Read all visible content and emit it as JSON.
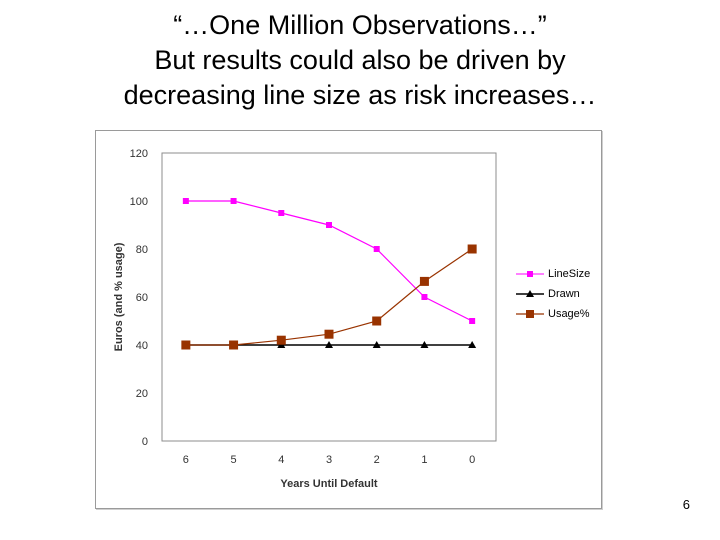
{
  "slide": {
    "title_lines": [
      "“…One Million Observations…”",
      "But results could also be driven by",
      "decreasing line size as risk increases…"
    ],
    "page_number": "6"
  },
  "chart_data": {
    "type": "line",
    "categories": [
      "6",
      "5",
      "4",
      "3",
      "2",
      "1",
      "0"
    ],
    "xlabel": "Years Until Default",
    "ylabel": "Euros (and % usage)",
    "ylim": [
      0,
      120
    ],
    "yticks": [
      0,
      20,
      40,
      60,
      80,
      100,
      120
    ],
    "grid": false,
    "legend_position": "right",
    "series": [
      {
        "name": "LineSize",
        "values": [
          100,
          100,
          95,
          90,
          80,
          60,
          50
        ],
        "color": "#ff00ff",
        "marker": "square-small"
      },
      {
        "name": "Drawn",
        "values": [
          40,
          40,
          40,
          40,
          40,
          40,
          40
        ],
        "color": "#000000",
        "marker": "triangle"
      },
      {
        "name": "Usage%",
        "values": [
          40,
          40,
          42,
          44.5,
          50,
          66.5,
          80
        ],
        "color": "#993300",
        "marker": "square-large"
      }
    ]
  }
}
